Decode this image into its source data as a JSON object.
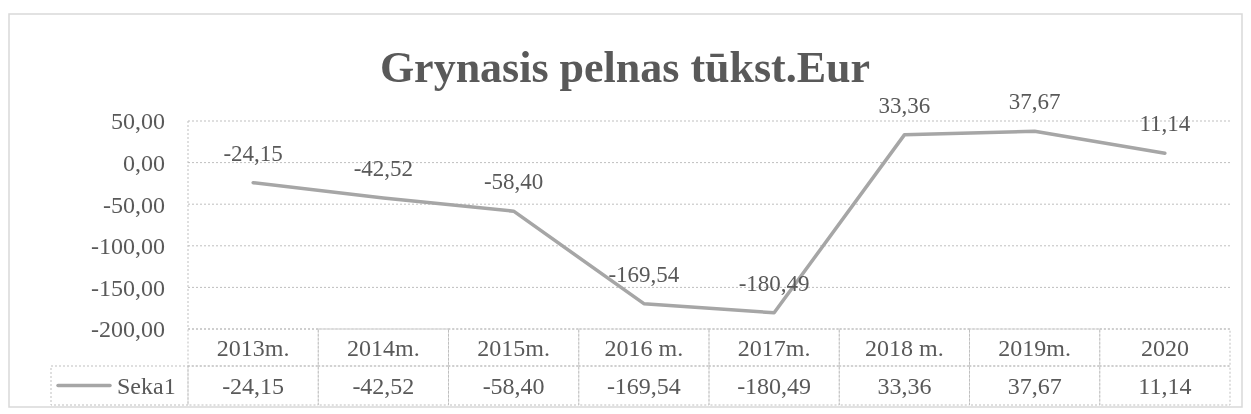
{
  "chart_data": {
    "type": "line",
    "title": "Grynasis pelnas tūkst.Eur",
    "categories": [
      "2013m.",
      "2014m.",
      "2015m.",
      "2016 m.",
      "2017m.",
      "2018 m.",
      "2019m.",
      "2020"
    ],
    "series": [
      {
        "name": "Seka1",
        "color": "#a6a6a6",
        "values": [
          -24.15,
          -42.52,
          -58.4,
          -169.54,
          -180.49,
          33.36,
          37.67,
          11.14
        ],
        "value_labels": [
          "-24,15",
          "-42,52",
          "-58,40",
          "-169,54",
          "-180,49",
          "33,36",
          "37,67",
          "11,14"
        ]
      }
    ],
    "ylim": [
      -200,
      50
    ],
    "yticks": [
      {
        "value": -200,
        "label": "-200,00"
      },
      {
        "value": -150,
        "label": "-150,00"
      },
      {
        "value": -100,
        "label": "-100,00"
      },
      {
        "value": -50,
        "label": "-50,00"
      },
      {
        "value": 0,
        "label": "0,00"
      },
      {
        "value": 50,
        "label": "50,00"
      }
    ],
    "grid": "y",
    "legend": "bottom"
  }
}
